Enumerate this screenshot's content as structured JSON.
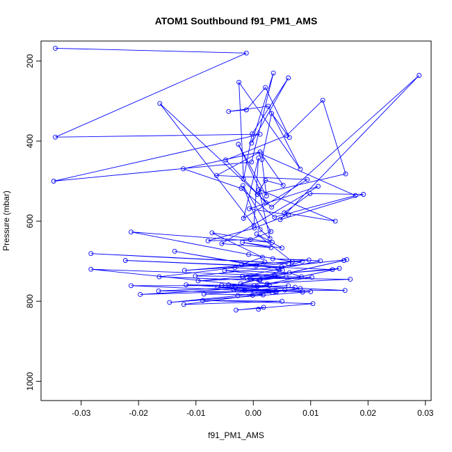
{
  "chart_data": {
    "type": "line",
    "title": "ATOM1 Southbound f91_PM1_AMS",
    "xlabel": "f91_PM1_AMS",
    "ylabel": "Pressure (mbar)",
    "xlim": [
      -0.037,
      0.031
    ],
    "ylim": [
      1048,
      150
    ],
    "y_reversed": true,
    "xticks": [
      -0.03,
      -0.02,
      -0.01,
      0.0,
      0.01,
      0.02,
      0.03
    ],
    "xtick_labels": [
      "-0.03",
      "-0.02",
      "-0.01",
      "0.00",
      "0.01",
      "0.02",
      "0.03"
    ],
    "yticks": [
      200,
      400,
      600,
      800,
      1000
    ],
    "ytick_labels": [
      "200",
      "400",
      "600",
      "800",
      "1000"
    ],
    "grid": false,
    "series_color": "#0000ff",
    "marker": "open-circle",
    "series": [
      {
        "x": [
          -0.0345,
          -0.0012,
          -0.0345,
          0.0012,
          -0.0348,
          -0.0003,
          0.0035,
          -0.0003,
          0.0061,
          -0.0002,
          -0.0017,
          -0.0025,
          0.0082,
          0.0026,
          -0.0043,
          -0.0012,
          0.0021,
          0.0063,
          0.0032,
          0.0015,
          0.0023,
          -0.0026,
          0.0022,
          -0.0048,
          0.0058,
          0.0121,
          0.0161,
          0.0007,
          0.0021,
          0.0052,
          0.0014,
          0.0178,
          0.0037,
          -0.0021,
          -0.0122,
          0.0012,
          -0.0064,
          0.0094,
          -0.0017,
          0.0009,
          0.0001,
          -0.0163,
          0.0032,
          0.0289,
          0.0047,
          0.0192,
          0.0099,
          0.0054,
          0.0143,
          0.001,
          0.0029,
          0.0012,
          -0.0018,
          0.0031,
          -0.0005,
          -0.0079,
          0.0002,
          0.0061,
          -0.0007,
          0.0113,
          -0.0055,
          0.0031,
          -0.0019,
          0.005,
          0.0006,
          0.0068,
          -0.0008,
          -0.0213,
          0.0033,
          -0.0072,
          0.0016,
          -0.002,
          0.0085,
          0.0043,
          -0.0137,
          0.0005,
          0.002,
          -0.0283,
          0.0061,
          -0.012,
          0.0097,
          0.0034,
          0.0117,
          -0.0019,
          0.0138,
          -0.0223,
          0.0049,
          0.0163,
          -0.0101,
          0.0084,
          0.0063,
          -0.005,
          0.0037,
          -0.0004,
          0.0102,
          0.0007,
          -0.0283,
          0.0038,
          0.0012,
          0.0158,
          -0.0022,
          0.0051,
          -0.0032,
          -0.0164,
          0.0011,
          0.0057,
          -0.0096,
          0.015,
          0.0024,
          -0.0011,
          0.0169,
          -0.0055,
          0.0028,
          -0.0062,
          0.0086,
          -0.0117,
          0.0001,
          -0.0213,
          0.004,
          0.0033,
          -0.0165,
          0.0061,
          -0.0197,
          0.0055,
          0.016,
          -0.0043,
          0.0017,
          -0.0086,
          0.0073,
          -0.0015,
          0.0039,
          -0.0034,
          0.01,
          -0.0146,
          -0.0027,
          0.0082,
          -0.0001,
          -0.0121,
          0.005,
          -0.0088,
          0.0104,
          -0.003,
          0.0018,
          0.0009
        ],
        "y": [
          168,
          180,
          390,
          383,
          500,
          452,
          230,
          405,
          242,
          382,
          495,
          253,
          470,
          313,
          326,
          322,
          266,
          391,
          331,
          446,
          537,
          408,
          554,
          447,
          386,
          298,
          482,
          533,
          498,
          510,
          432,
          536,
          590,
          518,
          469,
          427,
          486,
          496,
          593,
          442,
          611,
          306,
          565,
          236,
          596,
          533,
          531,
          579,
          600,
          521,
          643,
          621,
          511,
          626,
          646,
          649,
          617,
          584,
          569,
          513,
          656,
          666,
          653,
          667,
          632,
          701,
          683,
          627,
          653,
          629,
          690,
          708,
          701,
          719,
          675,
          711,
          702,
          681,
          706,
          723,
          697,
          694,
          699,
          738,
          721,
          698,
          714,
          696,
          737,
          739,
          729,
          723,
          738,
          745,
          740,
          763,
          720,
          736,
          746,
          698,
          756,
          723,
          716,
          739,
          748,
          739,
          749,
          718,
          757,
          742,
          745,
          760,
          761,
          765,
          777,
          759,
          761,
          761,
          777,
          778,
          774,
          761,
          783,
          772,
          773,
          759,
          784,
          782,
          765,
          773,
          775,
          771,
          776,
          803,
          786,
          768,
          785,
          808,
          800,
          798,
          806,
          822,
          815,
          820
        ]
      }
    ]
  }
}
